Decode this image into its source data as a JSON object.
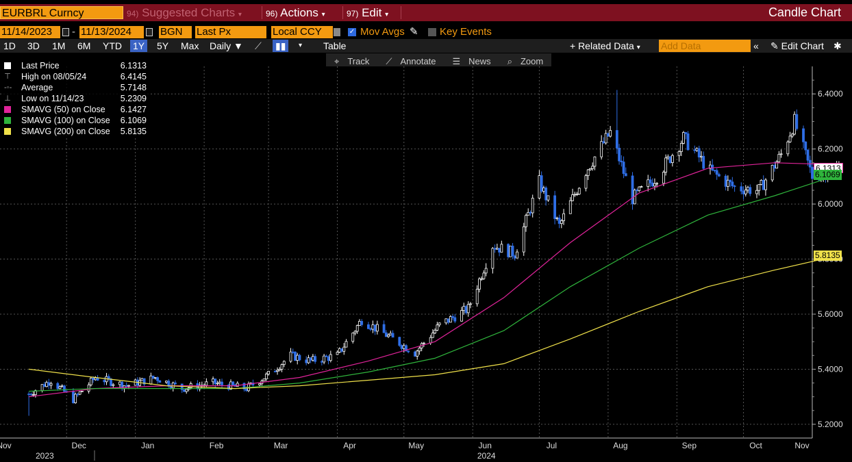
{
  "window": {
    "ticker": "EURBRL Curncy",
    "suggested_menu": "Suggested Charts",
    "suggested_num": "94)",
    "actions_menu": "Actions",
    "actions_num": "96)",
    "edit_menu": "Edit",
    "edit_num": "97)",
    "chart_title": "Candle Chart"
  },
  "controls": {
    "start_date": "11/14/2023",
    "end_date": "11/13/2024",
    "source": "BGN",
    "field": "Last Px",
    "currency": "Local CCY",
    "mov_avgs_label": "Mov Avgs",
    "mov_avgs_checked": true,
    "key_events_label": "Key Events",
    "key_events_checked": false
  },
  "toolbar": {
    "periods": [
      "1D",
      "3D",
      "1M",
      "6M",
      "YTD",
      "1Y",
      "5Y",
      "Max"
    ],
    "selected_period": "1Y",
    "frequency": "Daily",
    "table_label": "Table",
    "related_data_label": "+ Related Data",
    "add_data_placeholder": "Add Data",
    "edit_chart_label": "Edit Chart"
  },
  "subtools": {
    "track": "Track",
    "annotate": "Annotate",
    "news": "News",
    "zoom": "Zoom"
  },
  "legend": [
    {
      "label": "Last Price",
      "value": "6.1313",
      "icon": "white-square",
      "color": "#ffffff"
    },
    {
      "label": "High on 08/05/24",
      "value": "6.4145",
      "icon": "high-marker-icon"
    },
    {
      "label": "Average",
      "value": "5.7148",
      "icon": "average-marker-icon"
    },
    {
      "label": "Low on 11/14/23",
      "value": "5.2309",
      "icon": "low-marker-icon"
    },
    {
      "label": "SMAVG (50)  on Close",
      "value": "6.1427",
      "color": "#e0239a"
    },
    {
      "label": "SMAVG (100)  on Close",
      "value": "6.1069",
      "color": "#2fb43c"
    },
    {
      "label": "SMAVG (200)  on Close",
      "value": "5.8135",
      "color": "#f0e14a"
    }
  ],
  "colors": {
    "up_candle": "#ffffff",
    "down_candle": "#2f6ee6",
    "sma50": "#e0239a",
    "sma100": "#2fb43c",
    "sma200": "#f0e14a",
    "accent": "#f39a10",
    "title_bar": "#7e1120"
  },
  "chart_data": {
    "type": "candlestick",
    "title": "Candle Chart",
    "ylim": [
      5.15,
      6.5
    ],
    "y_ticks": [
      5.2,
      5.4,
      5.6,
      5.8,
      6.0,
      6.2,
      6.4
    ],
    "y_tick_labels": [
      "5.2000",
      "5.4000",
      "5.6000",
      "5.8000",
      "6.0000",
      "6.2000",
      "6.4000"
    ],
    "x_month_labels": [
      "Nov",
      "Dec",
      "Jan",
      "Feb",
      "Mar",
      "Apr",
      "May",
      "Jun",
      "Jul",
      "Aug",
      "Sep",
      "Oct",
      "Nov"
    ],
    "x_month_dates": [
      "2023-11-01",
      "2023-12-01",
      "2024-01-01",
      "2024-02-01",
      "2024-03-01",
      "2024-04-01",
      "2024-05-01",
      "2024-06-01",
      "2024-07-01",
      "2024-08-01",
      "2024-09-01",
      "2024-10-01",
      "2024-11-01"
    ],
    "x_year_labels": [
      {
        "text": "2023",
        "date": "2023-11-15"
      },
      {
        "text": "2024",
        "date": "2024-06-01"
      }
    ],
    "x_range": [
      "2023-11-01",
      "2024-11-01"
    ],
    "price_path": [
      [
        "2023-11-14",
        5.31
      ],
      [
        "2023-11-24",
        5.36
      ],
      [
        "2023-12-04",
        5.29
      ],
      [
        "2023-12-14",
        5.37
      ],
      [
        "2023-12-28",
        5.34
      ],
      [
        "2024-01-10",
        5.37
      ],
      [
        "2024-01-22",
        5.33
      ],
      [
        "2024-02-05",
        5.35
      ],
      [
        "2024-02-20",
        5.33
      ],
      [
        "2024-03-01",
        5.38
      ],
      [
        "2024-03-11",
        5.45
      ],
      [
        "2024-03-20",
        5.43
      ],
      [
        "2024-04-01",
        5.45
      ],
      [
        "2024-04-12",
        5.58
      ],
      [
        "2024-04-24",
        5.52
      ],
      [
        "2024-05-06",
        5.46
      ],
      [
        "2024-05-17",
        5.56
      ],
      [
        "2024-05-30",
        5.62
      ],
      [
        "2024-06-10",
        5.85
      ],
      [
        "2024-06-20",
        5.82
      ],
      [
        "2024-07-01",
        6.08
      ],
      [
        "2024-07-10",
        5.92
      ],
      [
        "2024-07-22",
        6.12
      ],
      [
        "2024-08-02",
        6.26
      ],
      [
        "2024-08-12",
        6.02
      ],
      [
        "2024-08-23",
        6.1
      ],
      [
        "2024-09-04",
        6.24
      ],
      [
        "2024-09-16",
        6.12
      ],
      [
        "2024-09-27",
        6.06
      ],
      [
        "2024-10-08",
        6.05
      ],
      [
        "2024-10-18",
        6.18
      ],
      [
        "2024-10-24",
        6.3
      ],
      [
        "2024-11-01",
        6.1
      ],
      [
        "2024-11-13",
        6.13
      ]
    ],
    "high": {
      "date": "2024-08-05",
      "value": 6.4145
    },
    "low": {
      "date": "2023-11-14",
      "value": 5.2309
    },
    "last_price": 6.1313,
    "series": [
      {
        "name": "SMAVG (50)  on Close",
        "points": [
          [
            "2023-11-14",
            5.3
          ],
          [
            "2023-12-14",
            5.33
          ],
          [
            "2024-01-15",
            5.34
          ],
          [
            "2024-02-15",
            5.34
          ],
          [
            "2024-03-15",
            5.37
          ],
          [
            "2024-04-15",
            5.43
          ],
          [
            "2024-05-15",
            5.5
          ],
          [
            "2024-06-15",
            5.66
          ],
          [
            "2024-07-15",
            5.86
          ],
          [
            "2024-08-15",
            6.04
          ],
          [
            "2024-09-15",
            6.13
          ],
          [
            "2024-10-15",
            6.15
          ],
          [
            "2024-11-13",
            6.1427
          ]
        ]
      },
      {
        "name": "SMAVG (100)  on Close",
        "points": [
          [
            "2023-11-14",
            5.32
          ],
          [
            "2023-12-14",
            5.33
          ],
          [
            "2024-01-15",
            5.33
          ],
          [
            "2024-02-15",
            5.33
          ],
          [
            "2024-03-15",
            5.35
          ],
          [
            "2024-04-15",
            5.39
          ],
          [
            "2024-05-15",
            5.44
          ],
          [
            "2024-06-15",
            5.54
          ],
          [
            "2024-07-15",
            5.7
          ],
          [
            "2024-08-15",
            5.84
          ],
          [
            "2024-09-15",
            5.96
          ],
          [
            "2024-10-15",
            6.03
          ],
          [
            "2024-11-13",
            6.1069
          ]
        ]
      },
      {
        "name": "SMAVG (200)  on Close",
        "points": [
          [
            "2023-11-14",
            5.4
          ],
          [
            "2023-12-14",
            5.37
          ],
          [
            "2024-01-15",
            5.34
          ],
          [
            "2024-02-15",
            5.33
          ],
          [
            "2024-03-15",
            5.34
          ],
          [
            "2024-04-15",
            5.36
          ],
          [
            "2024-05-15",
            5.38
          ],
          [
            "2024-06-15",
            5.42
          ],
          [
            "2024-07-15",
            5.51
          ],
          [
            "2024-08-15",
            5.61
          ],
          [
            "2024-09-15",
            5.7
          ],
          [
            "2024-10-15",
            5.76
          ],
          [
            "2024-11-13",
            5.8135
          ]
        ]
      }
    ],
    "y_tags": [
      {
        "text": "6.1313",
        "value": 6.1313,
        "bg": "#ffffff",
        "border": "#e0239a"
      },
      {
        "text": "6.1069",
        "value": 6.1069,
        "bg": "#2fb43c"
      },
      {
        "text": "5.8135",
        "value": 5.8135,
        "bg": "#f0e14a"
      }
    ]
  }
}
